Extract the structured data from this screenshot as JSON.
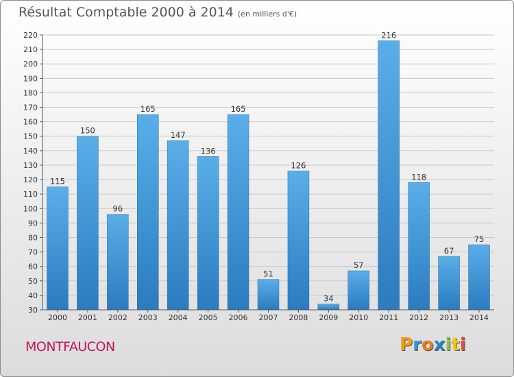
{
  "chart_data": {
    "type": "bar",
    "title": "Résultat Comptable 2000 à 2014",
    "subtitle": "(en milliers d'€)",
    "categories": [
      "2000",
      "2001",
      "2002",
      "2003",
      "2004",
      "2005",
      "2006",
      "2007",
      "2008",
      "2009",
      "2010",
      "2011",
      "2012",
      "2013",
      "2014"
    ],
    "values": [
      115,
      150,
      96,
      165,
      147,
      136,
      165,
      51,
      126,
      34,
      57,
      216,
      118,
      67,
      75
    ],
    "ylim": [
      30,
      220
    ],
    "yticks": [
      30,
      40,
      50,
      60,
      70,
      80,
      90,
      100,
      110,
      120,
      130,
      140,
      150,
      160,
      170,
      180,
      190,
      200,
      210,
      220
    ],
    "grid": true,
    "bar_color_top": "#5aaee8",
    "bar_color_bottom": "#2b7bbf"
  },
  "footer": {
    "town": "MONTFAUCON",
    "logo_letters": [
      "P",
      "r",
      "o",
      "x",
      "i",
      "t",
      "i"
    ],
    "logo_colors": [
      "#f39c12",
      "#3498db",
      "#e67e22",
      "#2c80c5",
      "#8bc34a",
      "#f1c40f",
      "#e74c3c"
    ]
  }
}
